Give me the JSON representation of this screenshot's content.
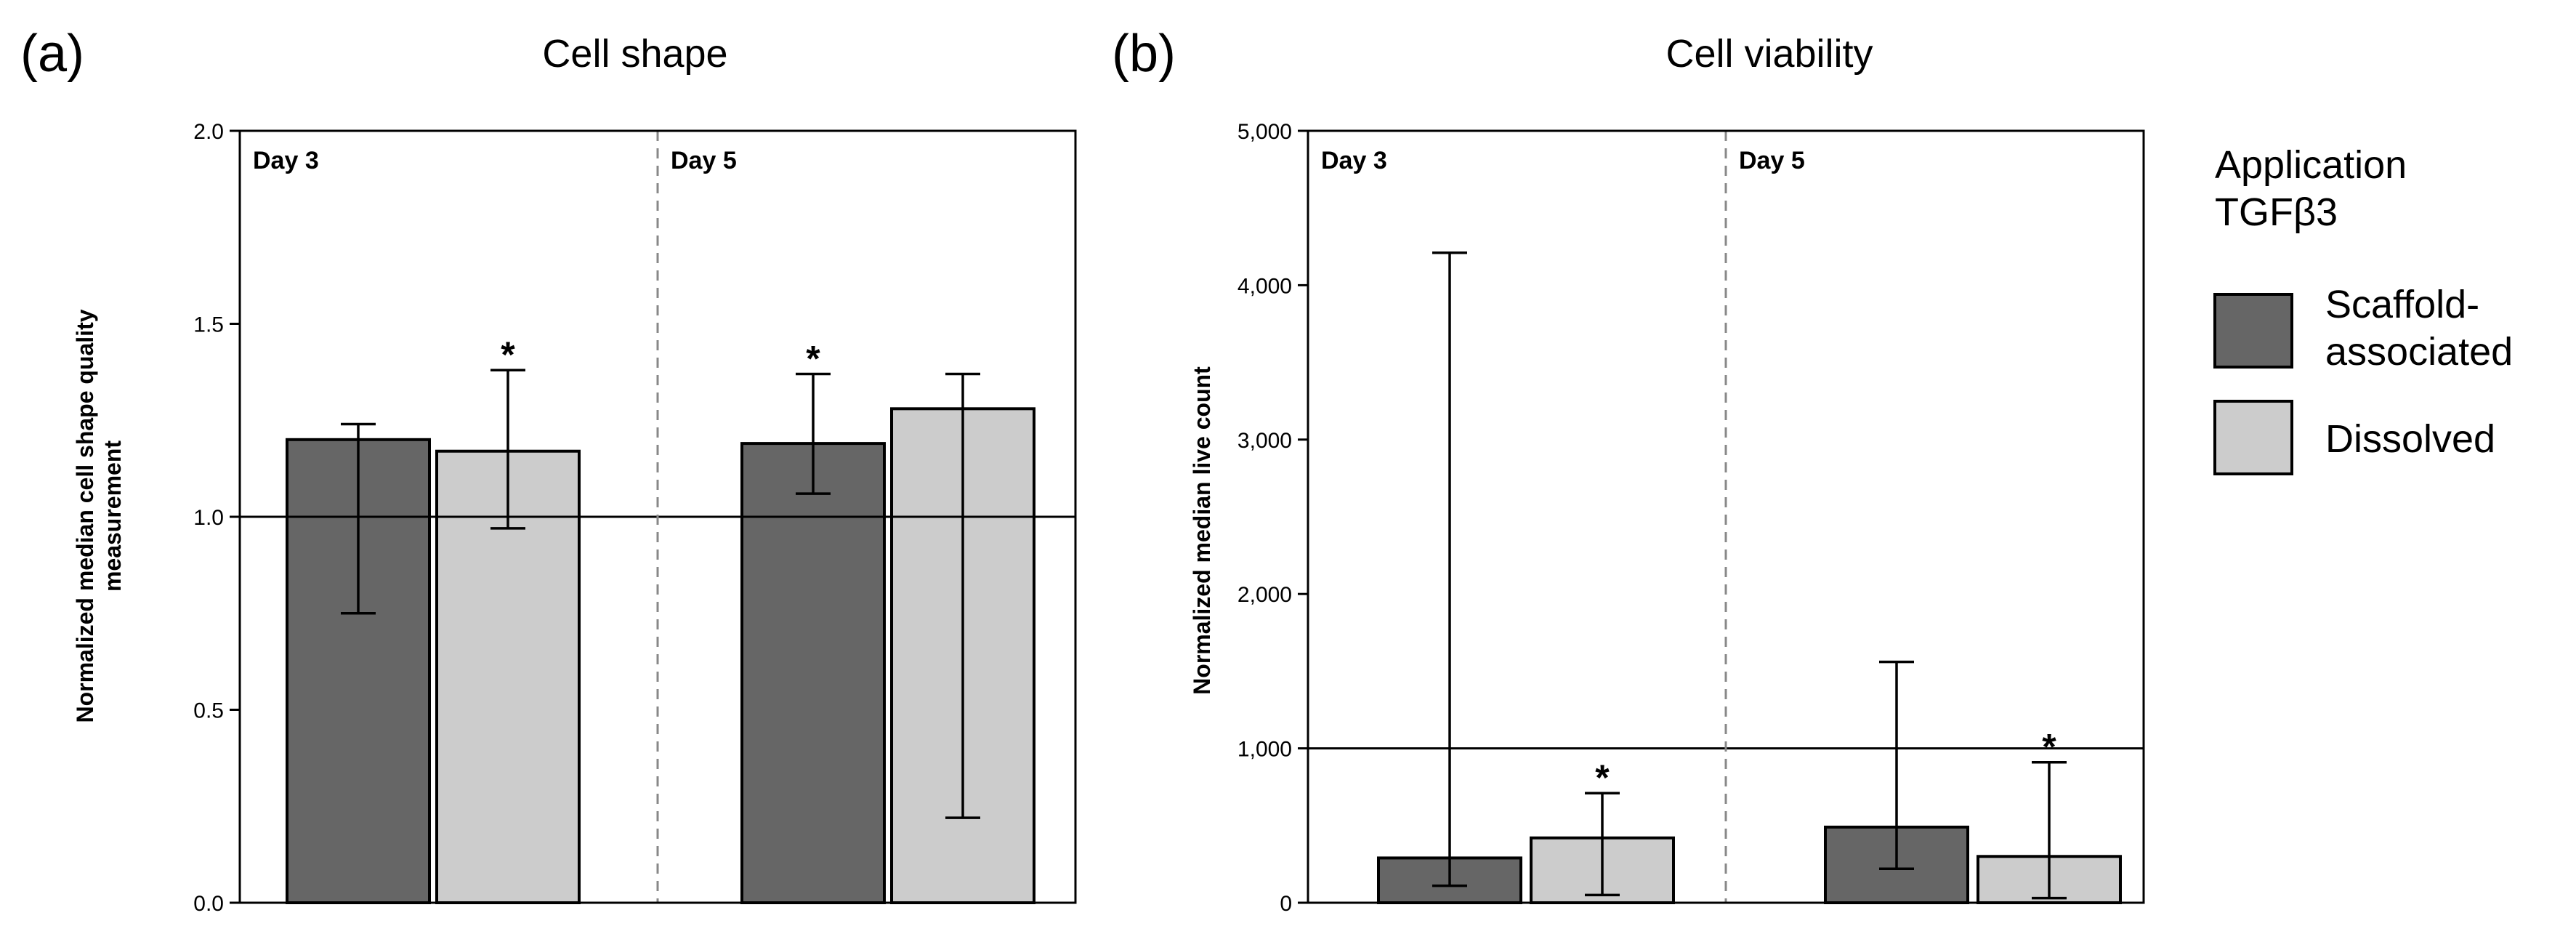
{
  "chart_data": [
    {
      "panel": "(a)",
      "type": "bar",
      "title": "Cell shape",
      "ylabel_lines": [
        "Normalized median cell shape quality",
        "measurement"
      ],
      "ylim": [
        0,
        2.0
      ],
      "yticks": [
        0.0,
        0.5,
        1.0,
        1.5,
        2.0
      ],
      "ytick_labels": [
        "0.0",
        "0.5",
        "1.0",
        "1.5",
        "2.0"
      ],
      "reference_line": 1.0,
      "groups": [
        {
          "label": "Day 3",
          "bars": [
            {
              "series": "Scaffold-associated",
              "value": 1.2,
              "err_low": 0.75,
              "err_high": 1.24,
              "star": ""
            },
            {
              "series": "Dissolved",
              "value": 1.17,
              "err_low": 0.97,
              "err_high": 1.38,
              "star": "*"
            }
          ]
        },
        {
          "label": "Day 5",
          "bars": [
            {
              "series": "Scaffold-associated",
              "value": 1.19,
              "err_low": 1.06,
              "err_high": 1.37,
              "star": "*"
            },
            {
              "series": "Dissolved",
              "value": 1.28,
              "err_low": 0.22,
              "err_high": 1.37,
              "star": ""
            }
          ]
        }
      ]
    },
    {
      "panel": "(b)",
      "type": "bar",
      "title": "Cell viability",
      "ylabel_lines": [
        "Normalized median live count"
      ],
      "ylim": [
        0,
        5000
      ],
      "yticks": [
        0,
        1000,
        2000,
        3000,
        4000,
        5000
      ],
      "ytick_labels": [
        "0",
        "1,000",
        "2,000",
        "3,000",
        "4,000",
        "5,000"
      ],
      "reference_line": 1000,
      "groups": [
        {
          "label": "Day 3",
          "bars": [
            {
              "series": "Scaffold-associated",
              "value": 290,
              "err_low": 110,
              "err_high": 4210,
              "star": ""
            },
            {
              "series": "Dissolved",
              "value": 420,
              "err_low": 50,
              "err_high": 710,
              "star": "*"
            }
          ]
        },
        {
          "label": "Day 5",
          "bars": [
            {
              "series": "Scaffold-associated",
              "value": 490,
              "err_low": 220,
              "err_high": 1560,
              "star": ""
            },
            {
              "series": "Dissolved",
              "value": 300,
              "err_low": 30,
              "err_high": 910,
              "star": "*"
            }
          ]
        }
      ]
    }
  ],
  "legend": {
    "title_lines": [
      "Application",
      "TGFβ3"
    ],
    "entries": [
      {
        "label_lines": [
          "Scaffold-",
          "associated"
        ],
        "color": "#666666"
      },
      {
        "label_lines": [
          "Dissolved"
        ],
        "color": "#cccccc"
      }
    ]
  },
  "colors": {
    "Scaffold-associated": "#666666",
    "Dissolved": "#cccccc"
  }
}
